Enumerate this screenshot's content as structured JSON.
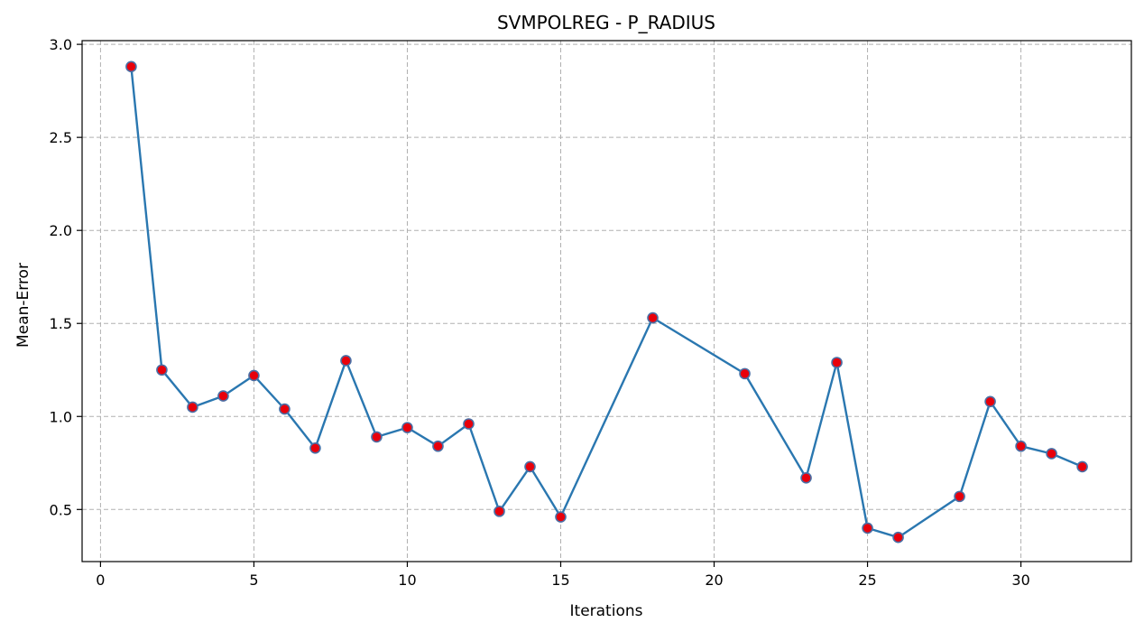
{
  "chart_data": {
    "type": "line",
    "title": "SVMPOLREG - P_RADIUS",
    "xlabel": "Iterations",
    "ylabel": "Mean-Error",
    "xlim": [
      -0.6,
      33.6
    ],
    "ylim": [
      0.22,
      3.02
    ],
    "xticks": [
      0,
      5,
      10,
      15,
      20,
      25,
      30
    ],
    "yticks": [
      0.5,
      1.0,
      1.5,
      2.0,
      2.5,
      3.0
    ],
    "xtick_labels": [
      "0",
      "5",
      "10",
      "15",
      "20",
      "25",
      "30"
    ],
    "ytick_labels": [
      "0.5",
      "1.0",
      "1.5",
      "2.0",
      "2.5",
      "3.0"
    ],
    "grid": true,
    "line_color": "#2a77b0",
    "marker_fill": "#e8000b",
    "marker_edge": "#4a6fa5",
    "series": [
      {
        "x": [
          1,
          2,
          3,
          4,
          5,
          6,
          7,
          8,
          9,
          10,
          11,
          12,
          13,
          14,
          15,
          18,
          21,
          23,
          24,
          25,
          26,
          28,
          29,
          30,
          31,
          32
        ],
        "values": [
          2.88,
          1.25,
          1.05,
          1.11,
          1.22,
          1.04,
          0.83,
          1.3,
          0.89,
          0.94,
          0.84,
          0.96,
          0.49,
          0.73,
          0.46,
          1.53,
          1.23,
          0.67,
          1.29,
          0.4,
          0.35,
          0.57,
          1.08,
          0.84,
          0.8,
          0.73
        ]
      }
    ]
  }
}
